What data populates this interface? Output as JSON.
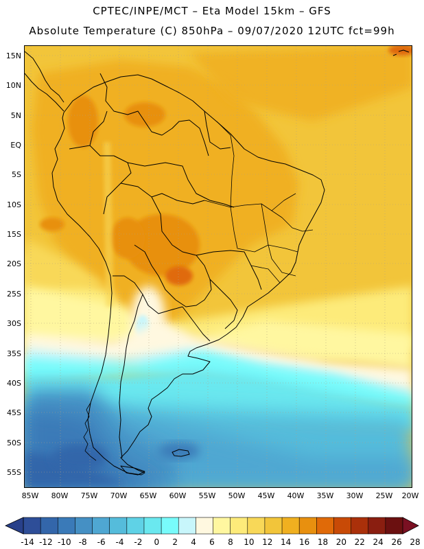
{
  "title": {
    "line1": "CPTEC/INPE/MCT –  Eta Model 15km – GFS",
    "line2": "Absolute Temperature (C) 850hPa – 09/07/2020 12UTC fct=99h"
  },
  "map": {
    "lat_labels": [
      {
        "label": "15N",
        "lat": 15
      },
      {
        "label": "10N",
        "lat": 10
      },
      {
        "label": "5N",
        "lat": 5
      },
      {
        "label": "EQ",
        "lat": 0
      },
      {
        "label": "5S",
        "lat": -5
      },
      {
        "label": "10S",
        "lat": -10
      },
      {
        "label": "15S",
        "lat": -15
      },
      {
        "label": "20S",
        "lat": -20
      },
      {
        "label": "25S",
        "lat": -25
      },
      {
        "label": "30S",
        "lat": -30
      },
      {
        "label": "35S",
        "lat": -35
      },
      {
        "label": "40S",
        "lat": -40
      },
      {
        "label": "45S",
        "lat": -45
      },
      {
        "label": "50S",
        "lat": -50
      },
      {
        "label": "55S",
        "lat": -55
      }
    ],
    "lon_labels": [
      {
        "label": "85W",
        "lon": -85
      },
      {
        "label": "80W",
        "lon": -80
      },
      {
        "label": "75W",
        "lon": -75
      },
      {
        "label": "70W",
        "lon": -70
      },
      {
        "label": "65W",
        "lon": -65
      },
      {
        "label": "60W",
        "lon": -60
      },
      {
        "label": "55W",
        "lon": -55
      },
      {
        "label": "50W",
        "lon": -50
      },
      {
        "label": "45W",
        "lon": -45
      },
      {
        "label": "40W",
        "lon": -40
      },
      {
        "label": "35W",
        "lon": -35
      },
      {
        "label": "30W",
        "lon": -30
      },
      {
        "label": "25W",
        "lon": -25
      },
      {
        "label": "20W",
        "lon": -20
      }
    ]
  },
  "colorbar": {
    "labels": [
      "-14",
      "-12",
      "-10",
      "-8",
      "-6",
      "-4",
      "-2",
      "0",
      "2",
      "4",
      "6",
      "8",
      "10",
      "12",
      "14",
      "16",
      "18",
      "20",
      "22",
      "24",
      "26",
      "28"
    ],
    "colors": [
      "#2e4e98",
      "#3366aa",
      "#3a7ab8",
      "#4590c4",
      "#4fa7d2",
      "#55bcdb",
      "#5fd2e6",
      "#6ae8ef",
      "#78fbfb",
      "#c8f6fb",
      "#fff8e0",
      "#fff7a0",
      "#fdeb7a",
      "#f8d858",
      "#f2c53a",
      "#f0b020",
      "#e8900f",
      "#e06a08",
      "#c84a06",
      "#aa300a",
      "#8a1e10",
      "#6b1010"
    ],
    "left_arrow_color": "#28408a",
    "right_arrow_color": "#7a1022"
  }
}
